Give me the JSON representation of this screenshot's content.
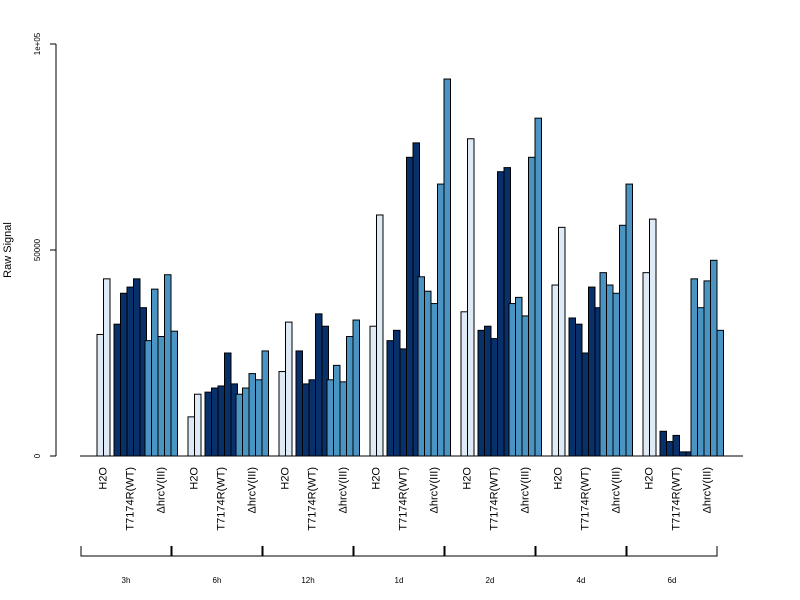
{
  "chart_data": {
    "type": "bar",
    "ylabel": "Raw Signal",
    "ylim": [
      0,
      100000
    ],
    "yticks": [
      0,
      50000,
      100000
    ],
    "ytick_labels": [
      "0",
      "50000",
      "1e+05"
    ],
    "treatments": [
      "H2O",
      "T7174R(WT)",
      "ΔhrcV(III)"
    ],
    "timepoints": [
      "3h",
      "6h",
      "12h",
      "1d",
      "2d",
      "4d",
      "6d"
    ],
    "colors": {
      "H2O": "#deebf7",
      "T7174R(WT)": "#08306b",
      "ΔhrcV(III)": "#4a94c4"
    },
    "groups": [
      {
        "time": "3h",
        "H2O": [
          29500,
          43000
        ],
        "T7174R(WT)": [
          32000,
          39500,
          41000,
          43000,
          36000
        ],
        "ΔhrcV(III)": [
          28000,
          40500,
          29000,
          44000,
          30300
        ]
      },
      {
        "time": "6h",
        "H2O": [
          9500,
          15000
        ],
        "T7174R(WT)": [
          15500,
          16500,
          17000,
          25000,
          17500
        ],
        "ΔhrcV(III)": [
          15000,
          16500,
          20000,
          18500,
          25500
        ]
      },
      {
        "time": "12h",
        "H2O": [
          20500,
          32500
        ],
        "T7174R(WT)": [
          25500,
          17500,
          18500,
          34500,
          31500
        ],
        "ΔhrcV(III)": [
          18500,
          22000,
          18000,
          29000,
          33000
        ]
      },
      {
        "time": "1d",
        "H2O": [
          31500,
          58500
        ],
        "T7174R(WT)": [
          28000,
          30500,
          26000,
          72500,
          76000
        ],
        "ΔhrcV(III)": [
          43500,
          40000,
          37000,
          66000,
          91500
        ]
      },
      {
        "time": "2d",
        "H2O": [
          35000,
          77000
        ],
        "T7174R(WT)": [
          30500,
          31500,
          28500,
          69000,
          70000
        ],
        "ΔhrcV(III)": [
          37000,
          38500,
          34000,
          72500,
          82000
        ]
      },
      {
        "time": "4d",
        "H2O": [
          41500,
          55500
        ],
        "T7174R(WT)": [
          33500,
          32000,
          25000,
          41000,
          36000
        ],
        "ΔhrcV(III)": [
          44500,
          41500,
          39500,
          56000,
          66000
        ]
      },
      {
        "time": "6d",
        "H2O": [
          44500,
          57500
        ],
        "T7174R(WT)": [
          6000,
          3500,
          5000,
          1000,
          1000
        ],
        "ΔhrcV(III)": [
          43000,
          36000,
          42500,
          47500,
          30500
        ]
      }
    ]
  }
}
